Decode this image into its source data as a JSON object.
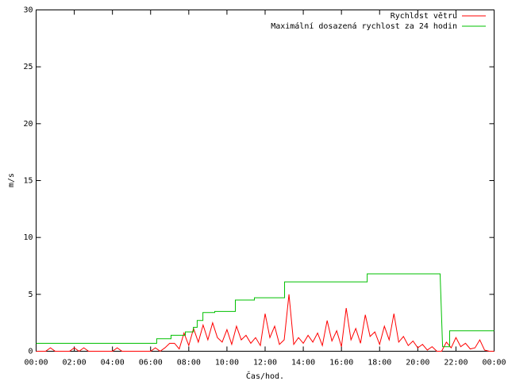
{
  "chart_data": {
    "type": "line",
    "xlabel": "Čas/hod.",
    "ylabel": "m/s",
    "xlim": [
      0,
      24
    ],
    "ylim": [
      0,
      30
    ],
    "xticks": [
      {
        "value": 0,
        "label": "00:00"
      },
      {
        "value": 2,
        "label": "02:00"
      },
      {
        "value": 4,
        "label": "04:00"
      },
      {
        "value": 6,
        "label": "06:00"
      },
      {
        "value": 8,
        "label": "08:00"
      },
      {
        "value": 10,
        "label": "10:00"
      },
      {
        "value": 12,
        "label": "12:00"
      },
      {
        "value": 14,
        "label": "14:00"
      },
      {
        "value": 16,
        "label": "16:00"
      },
      {
        "value": 18,
        "label": "18:00"
      },
      {
        "value": 20,
        "label": "20:00"
      },
      {
        "value": 22,
        "label": "22:00"
      },
      {
        "value": 24,
        "label": "00:00"
      }
    ],
    "yticks": [
      0,
      5,
      10,
      15,
      20,
      25,
      30
    ],
    "legend": "top-right",
    "series": [
      {
        "name": "Rychlost větru",
        "color": "#ff0000",
        "x": [
          0,
          0.25,
          0.5,
          0.75,
          1,
          1.25,
          1.5,
          1.75,
          2,
          2.25,
          2.5,
          2.75,
          3,
          3.25,
          3.5,
          3.75,
          4,
          4.25,
          4.5,
          4.75,
          5,
          5.25,
          5.5,
          5.75,
          6,
          6.25,
          6.5,
          6.75,
          7,
          7.25,
          7.5,
          7.75,
          8,
          8.25,
          8.5,
          8.75,
          9,
          9.25,
          9.5,
          9.75,
          10,
          10.25,
          10.5,
          10.75,
          11,
          11.25,
          11.5,
          11.75,
          12,
          12.25,
          12.5,
          12.75,
          13,
          13.25,
          13.5,
          13.75,
          14,
          14.25,
          14.5,
          14.75,
          15,
          15.25,
          15.5,
          15.75,
          16,
          16.25,
          16.5,
          16.75,
          17,
          17.25,
          17.5,
          17.75,
          18,
          18.25,
          18.5,
          18.75,
          19,
          19.25,
          19.5,
          19.75,
          20,
          20.25,
          20.5,
          20.75,
          21,
          21.25,
          21.5,
          21.75,
          22,
          22.25,
          22.5,
          22.75,
          23,
          23.25,
          23.5,
          23.75,
          24
        ],
        "values": [
          0,
          0,
          0,
          0.3,
          0,
          0,
          0,
          0,
          0.3,
          0,
          0.3,
          0,
          0,
          0,
          0,
          0,
          0,
          0.3,
          0,
          0,
          0,
          0,
          0,
          0,
          0,
          0.3,
          0,
          0.3,
          0.7,
          0.7,
          0.2,
          1.6,
          0.5,
          2.0,
          0.8,
          2.3,
          1.0,
          2.5,
          1.2,
          0.8,
          1.9,
          0.6,
          2.2,
          1.0,
          1.4,
          0.7,
          1.2,
          0.5,
          3.3,
          1.2,
          2.2,
          0.6,
          1.0,
          5.0,
          0.6,
          1.2,
          0.7,
          1.4,
          0.8,
          1.6,
          0.5,
          2.7,
          0.9,
          1.8,
          0.4,
          3.8,
          1.0,
          2.0,
          0.7,
          3.2,
          1.3,
          1.7,
          0.6,
          2.2,
          1.0,
          3.3,
          0.8,
          1.3,
          0.5,
          0.9,
          0.3,
          0.6,
          0.1,
          0.4,
          0,
          0,
          0.8,
          0.3,
          1.2,
          0.4,
          0.7,
          0.2,
          0.3,
          1.0,
          0.1,
          0,
          0
        ]
      },
      {
        "name": "Maximální dosazená rychlost za 24 hodin",
        "color": "#00c000",
        "x": [
          0,
          6.32,
          6.32,
          7.07,
          7.07,
          7.82,
          7.82,
          8.24,
          8.24,
          8.44,
          8.44,
          8.74,
          8.74,
          9.36,
          9.36,
          10.44,
          10.44,
          11.44,
          11.44,
          13.02,
          13.02,
          17.35,
          17.35,
          21.17,
          21.3,
          21.67,
          21.67,
          24
        ],
        "values": [
          0.7,
          0.7,
          1.1,
          1.1,
          1.4,
          1.4,
          1.7,
          1.7,
          2.1,
          2.1,
          2.7,
          2.7,
          3.4,
          3.4,
          3.5,
          3.5,
          4.5,
          4.5,
          4.7,
          4.7,
          6.1,
          6.1,
          6.8,
          6.8,
          0.4,
          0.4,
          1.8,
          1.8
        ]
      }
    ]
  }
}
